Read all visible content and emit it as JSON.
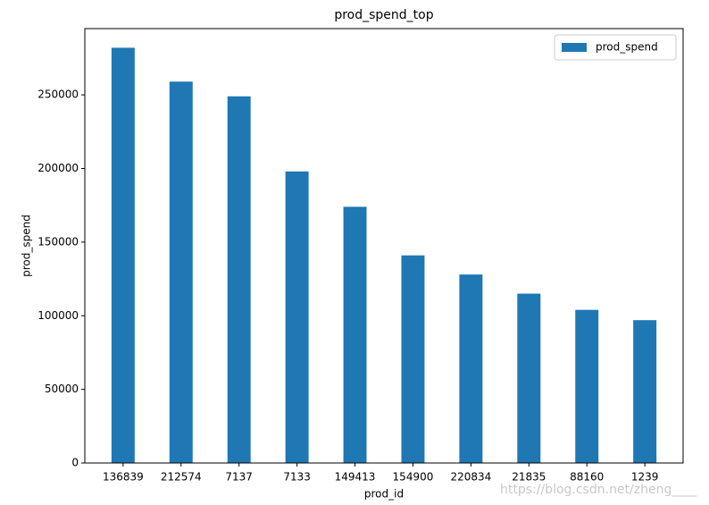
{
  "chart_data": {
    "type": "bar",
    "title": "prod_spend_top",
    "x_label": "prod_id",
    "y_label": "prod_spend",
    "categories": [
      "136839",
      "212574",
      "7137",
      "7133",
      "149413",
      "154900",
      "220834",
      "21835",
      "88160",
      "1239"
    ],
    "series": [
      {
        "name": "prod_spend",
        "color": "#1f77b4",
        "values": [
          282000,
          259000,
          249000,
          198000,
          174000,
          141000,
          128000,
          115000,
          104000,
          97000
        ]
      }
    ],
    "ylim": [
      0,
      295000
    ],
    "yticks": [
      0,
      50000,
      100000,
      150000,
      200000,
      250000
    ],
    "legend": "upper right",
    "watermark": "https://blog.csdn.net/zheng____"
  }
}
